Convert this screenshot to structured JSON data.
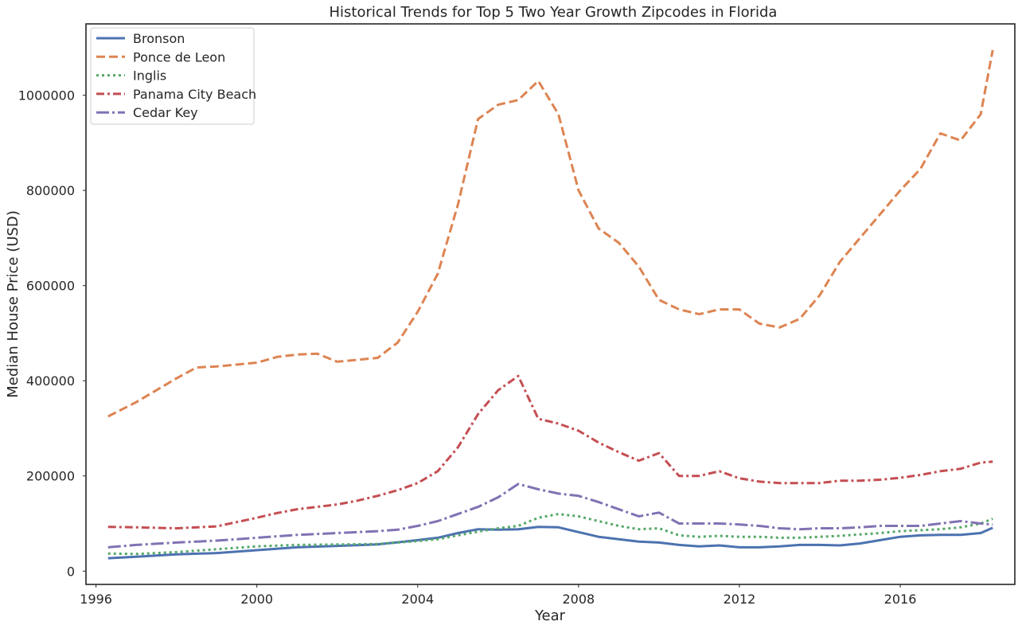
{
  "chart_data": {
    "type": "line",
    "title": "Historical Trends for Top 5 Two Year Growth Zipcodes in Florida",
    "xlabel": "Year",
    "ylabel": "Median House Price (USD)",
    "xlim": [
      1995.75,
      2018.85
    ],
    "ylim": [
      -28000,
      1150000
    ],
    "xticks": [
      1996,
      2000,
      2004,
      2008,
      2012,
      2016
    ],
    "yticks": [
      0,
      200000,
      400000,
      600000,
      800000,
      1000000
    ],
    "xtick_labels": [
      "1996",
      "2000",
      "2004",
      "2008",
      "2012",
      "2016"
    ],
    "ytick_labels": [
      "0",
      "200000",
      "400000",
      "600000",
      "800000",
      "1000000"
    ],
    "grid": false,
    "legend_position": "top-left",
    "series": [
      {
        "name": "Bronson",
        "color": "#4c72b0",
        "dash": "solid",
        "x": [
          1996.3,
          1997,
          1998,
          1999,
          2000,
          2001,
          2002,
          2003,
          2004,
          2004.5,
          2005,
          2005.5,
          2006,
          2006.5,
          2007,
          2007.5,
          2008,
          2008.5,
          2009,
          2009.5,
          2010,
          2010.5,
          2011,
          2011.5,
          2012,
          2012.5,
          2013,
          2013.5,
          2014,
          2014.5,
          2015,
          2015.5,
          2016,
          2016.5,
          2017,
          2017.5,
          2018,
          2018.3
        ],
        "y": [
          27000,
          30000,
          35000,
          38000,
          44000,
          50000,
          53000,
          56000,
          65000,
          70000,
          80000,
          88000,
          87000,
          88000,
          93000,
          92000,
          82000,
          72000,
          67000,
          62000,
          60000,
          55000,
          52000,
          54000,
          50000,
          50000,
          52000,
          55000,
          55000,
          54000,
          58000,
          65000,
          72000,
          75000,
          76000,
          76000,
          80000,
          91000
        ]
      },
      {
        "name": "Ponce de Leon",
        "color": "#dd8452",
        "dash": "dashed",
        "x": [
          1996.3,
          1997,
          1998,
          1998.5,
          1999,
          2000,
          2000.5,
          2001,
          2001.5,
          2002,
          2003,
          2003.5,
          2004,
          2004.5,
          2005,
          2005.5,
          2006,
          2006.5,
          2007,
          2007.5,
          2008,
          2008.5,
          2009,
          2009.5,
          2010,
          2010.5,
          2011,
          2011.5,
          2012,
          2012.5,
          2013,
          2013.5,
          2014,
          2014.5,
          2015,
          2015.5,
          2016,
          2016.5,
          2017,
          2017.5,
          2018,
          2018.3
        ],
        "y": [
          325000,
          355000,
          405000,
          428000,
          430000,
          438000,
          450000,
          455000,
          457000,
          440000,
          448000,
          480000,
          545000,
          625000,
          770000,
          950000,
          980000,
          990000,
          1030000,
          960000,
          800000,
          720000,
          690000,
          640000,
          570000,
          550000,
          540000,
          550000,
          550000,
          520000,
          512000,
          530000,
          580000,
          650000,
          700000,
          750000,
          800000,
          845000,
          920000,
          905000,
          960000,
          1095000
        ]
      },
      {
        "name": "Inglis",
        "color": "#55a868",
        "dash": "dotted",
        "x": [
          1996.3,
          1997,
          1998,
          1999,
          2000,
          2001,
          2002,
          2003,
          2004,
          2004.5,
          2005,
          2005.5,
          2006,
          2006.5,
          2007,
          2007.5,
          2008,
          2008.5,
          2009,
          2009.5,
          2010,
          2010.5,
          2011,
          2011.5,
          2012,
          2012.5,
          2013,
          2013.5,
          2014,
          2014.5,
          2015,
          2015.5,
          2016,
          2016.5,
          2017,
          2017.5,
          2018,
          2018.3
        ],
        "y": [
          37000,
          36000,
          40000,
          46000,
          52000,
          55000,
          56000,
          57000,
          63000,
          67000,
          75000,
          83000,
          90000,
          95000,
          112000,
          120000,
          115000,
          105000,
          95000,
          88000,
          90000,
          75000,
          72000,
          74000,
          72000,
          72000,
          70000,
          70000,
          72000,
          74000,
          77000,
          80000,
          84000,
          86000,
          88000,
          92000,
          100000,
          110000
        ]
      },
      {
        "name": "Panama City Beach",
        "color": "#c44e52",
        "dash": "dashdot",
        "x": [
          1996.3,
          1997,
          1998,
          1999,
          2000,
          2000.5,
          2001,
          2001.5,
          2002,
          2002.5,
          2003,
          2003.5,
          2004,
          2004.5,
          2005,
          2005.5,
          2006,
          2006.5,
          2007,
          2007.5,
          2008,
          2008.5,
          2009,
          2009.5,
          2010,
          2010.5,
          2011,
          2011.5,
          2012,
          2012.5,
          2013,
          2013.5,
          2014,
          2014.5,
          2015,
          2015.5,
          2016,
          2016.5,
          2017,
          2017.5,
          2018,
          2018.3
        ],
        "y": [
          93000,
          92000,
          90000,
          94000,
          112000,
          122000,
          130000,
          135000,
          140000,
          148000,
          158000,
          170000,
          185000,
          210000,
          260000,
          330000,
          380000,
          410000,
          320000,
          310000,
          295000,
          270000,
          250000,
          232000,
          248000,
          200000,
          200000,
          210000,
          195000,
          188000,
          185000,
          185000,
          185000,
          190000,
          190000,
          192000,
          196000,
          202000,
          210000,
          215000,
          228000,
          230000
        ]
      },
      {
        "name": "Cedar Key",
        "color": "#8172b3",
        "dash": "dashdotlong",
        "x": [
          1996.3,
          1997,
          1998,
          1999,
          2000,
          2001,
          2002,
          2003,
          2003.5,
          2004,
          2004.5,
          2005,
          2005.5,
          2006,
          2006.5,
          2007,
          2007.5,
          2008,
          2008.5,
          2009,
          2009.5,
          2010,
          2010.5,
          2011,
          2011.5,
          2012,
          2012.5,
          2013,
          2013.5,
          2014,
          2014.5,
          2015,
          2015.5,
          2016,
          2016.5,
          2017,
          2017.5,
          2018,
          2018.3
        ],
        "y": [
          50000,
          55000,
          60000,
          64000,
          70000,
          76000,
          80000,
          84000,
          87000,
          95000,
          105000,
          120000,
          135000,
          155000,
          183000,
          172000,
          163000,
          158000,
          145000,
          130000,
          115000,
          123000,
          100000,
          100000,
          100000,
          98000,
          95000,
          90000,
          88000,
          90000,
          90000,
          92000,
          95000,
          95000,
          95000,
          100000,
          105000,
          100000,
          98000
        ]
      }
    ]
  }
}
